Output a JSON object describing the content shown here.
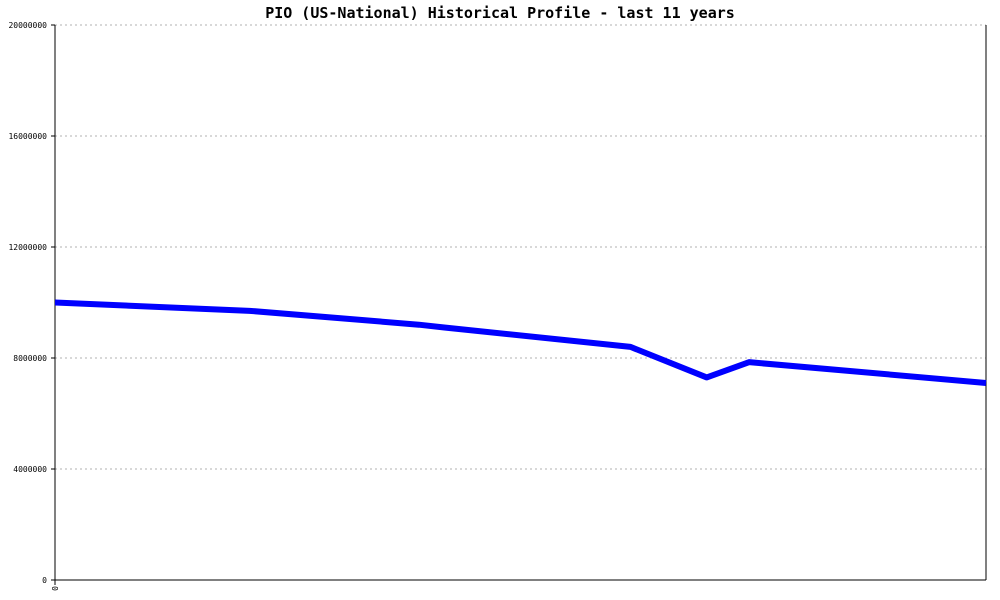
{
  "chart_data": {
    "type": "line",
    "title": "PIO (US-National) Historical Profile - last 11 years",
    "xlabel": "",
    "ylabel": "",
    "x_tick_labels": [
      "0"
    ],
    "y_ticks": [
      0,
      4000000,
      8000000,
      12000000,
      16000000,
      20000000
    ],
    "y_tick_labels": [
      "0",
      "4000000",
      "8000000",
      "12000000",
      "16000000",
      "20000000"
    ],
    "ylim": [
      0,
      20000000
    ],
    "xlim": [
      0,
      11
    ],
    "grid": true,
    "line_color": "#0000ff",
    "grid_color": "#b0b0b0",
    "series": [
      {
        "x": [
          0,
          2.3,
          4.3,
          4.6,
          6.8,
          7.7,
          8.2,
          11
        ],
        "values": [
          10000000,
          9700000,
          9200000,
          9100000,
          8400000,
          7300000,
          7850000,
          7100000
        ]
      }
    ]
  }
}
